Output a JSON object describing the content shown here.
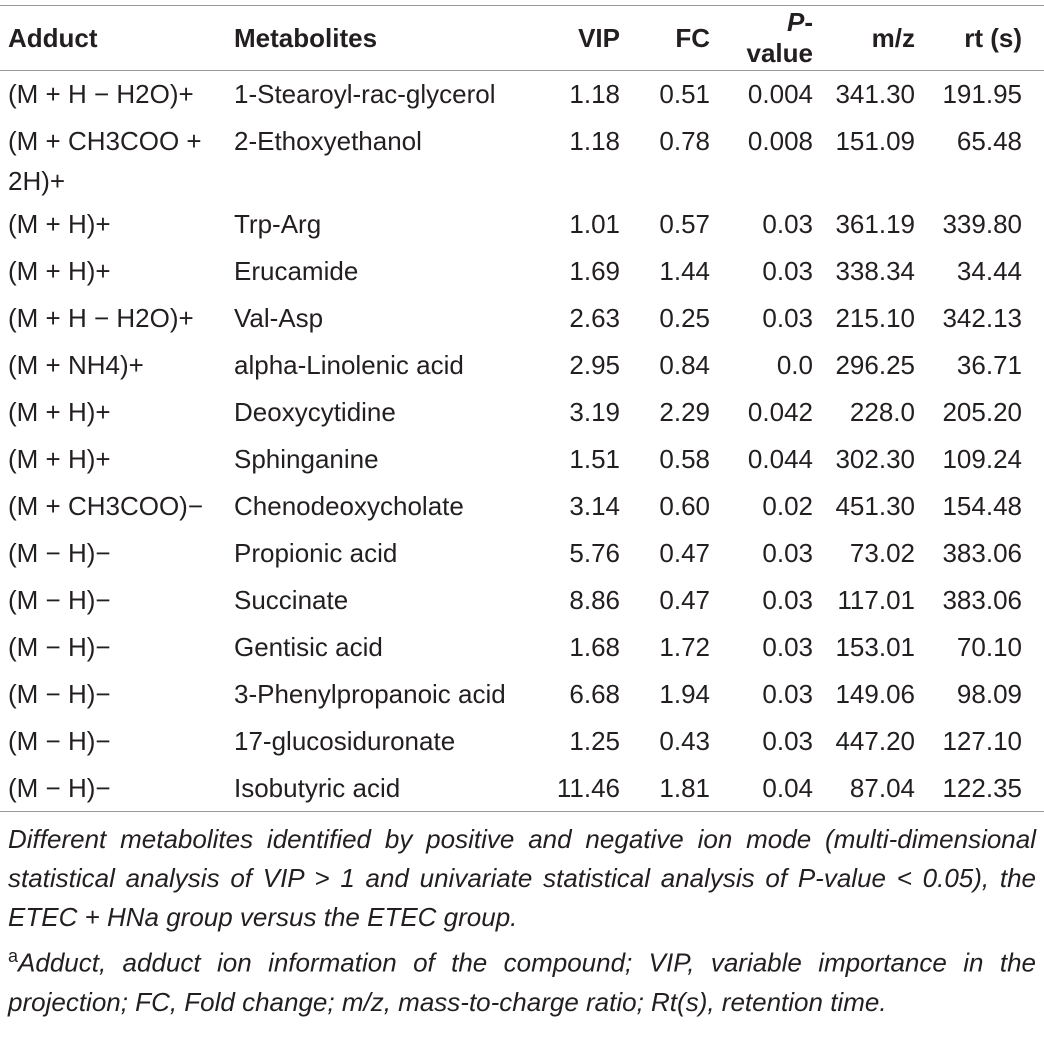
{
  "table": {
    "header": [
      "Adduct",
      "Metabolites",
      "VIP",
      "FC",
      [
        "P",
        "-value"
      ],
      "m/z",
      "rt (s)"
    ],
    "rows": [
      [
        "(M + H − H2O)+",
        "1-Stearoyl-rac-glycerol",
        "1.18",
        "0.51",
        "0.004",
        "341.30",
        "191.95"
      ],
      [
        "(M + CH3COO + 2H)+",
        "2-Ethoxyethanol",
        "1.18",
        "0.78",
        "0.008",
        "151.09",
        "65.48"
      ],
      [
        "(M + H)+",
        "Trp-Arg",
        "1.01",
        "0.57",
        "0.03",
        "361.19",
        "339.80"
      ],
      [
        "(M + H)+",
        "Erucamide",
        "1.69",
        "1.44",
        "0.03",
        "338.34",
        "34.44"
      ],
      [
        "(M + H − H2O)+",
        "Val-Asp",
        "2.63",
        "0.25",
        "0.03",
        "215.10",
        "342.13"
      ],
      [
        "(M + NH4)+",
        "alpha-Linolenic acid",
        "2.95",
        "0.84",
        "0.0",
        "296.25",
        "36.71"
      ],
      [
        "(M + H)+",
        "Deoxycytidine",
        "3.19",
        "2.29",
        "0.042",
        "228.0",
        "205.20"
      ],
      [
        "(M + H)+",
        "Sphinganine",
        "1.51",
        "0.58",
        "0.044",
        "302.30",
        "109.24"
      ],
      [
        "(M + CH3COO)−",
        "Chenodeoxycholate",
        "3.14",
        "0.60",
        "0.02",
        "451.30",
        "154.48"
      ],
      [
        "(M − H)−",
        "Propionic acid",
        "5.76",
        "0.47",
        "0.03",
        "73.02",
        "383.06"
      ],
      [
        "(M − H)−",
        "Succinate",
        "8.86",
        "0.47",
        "0.03",
        "117.01",
        "383.06"
      ],
      [
        "(M − H)−",
        "Gentisic acid",
        "1.68",
        "1.72",
        "0.03",
        "153.01",
        "70.10"
      ],
      [
        "(M − H)−",
        "3-Phenylpropanoic acid",
        "6.68",
        "1.94",
        "0.03",
        "149.06",
        "98.09"
      ],
      [
        "(M − H)−",
        "17-glucosiduronate",
        "1.25",
        "0.43",
        "0.03",
        "447.20",
        "127.10"
      ],
      [
        "(M − H)−",
        "Isobutyric acid",
        "11.46",
        "1.81",
        "0.04",
        "87.04",
        "122.35"
      ]
    ]
  },
  "notes": [
    {
      "text": "Different metabolites identified by positive and negative ion mode (multi-dimensional statistical analysis of VIP > 1 and univariate statistical analysis of P-value < 0.05), the ETEC + HNa group versus the ETEC group."
    },
    {
      "marker": "a",
      "text": "Adduct, adduct ion information of the compound; VIP, variable importance in the projection; FC, Fold change; m/z, mass-to-charge ratio; Rt(s), retention time."
    }
  ]
}
